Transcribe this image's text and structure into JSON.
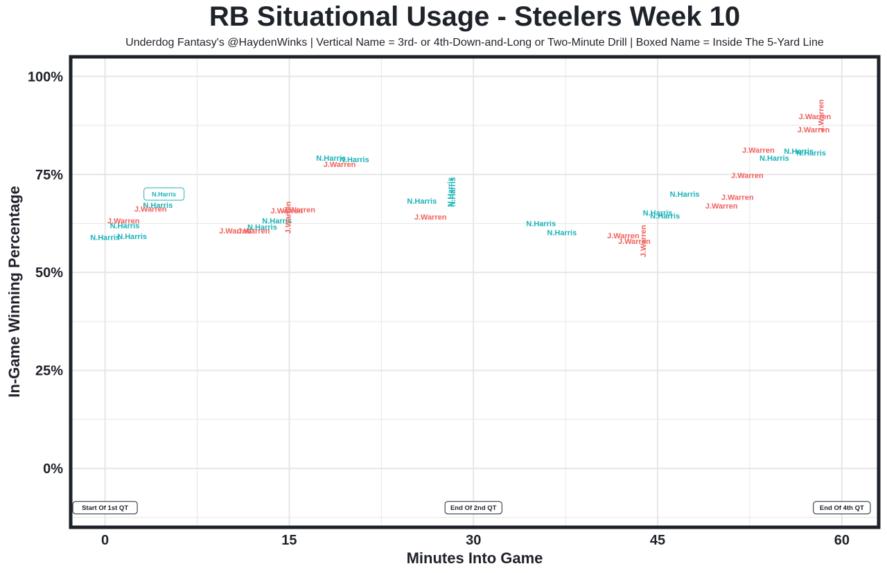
{
  "chart_data": {
    "type": "scatter",
    "title": "RB Situational Usage - Steelers Week 10",
    "subtitle": "Underdog Fantasy's @HaydenWinks | Vertical Name = 3rd- or 4th-Down-and-Long or Two-Minute Drill | Boxed Name = Inside The 5-Yard Line",
    "xlabel": "Minutes Into Game",
    "ylabel": "In-Game Winning Percentage",
    "xlim": [
      -2.8,
      63
    ],
    "ylim": [
      -15,
      105
    ],
    "x_ticks": [
      0,
      15,
      30,
      45,
      60
    ],
    "x_tick_labels": [
      "0",
      "15",
      "30",
      "45",
      "60"
    ],
    "y_ticks": [
      0,
      25,
      50,
      75,
      100
    ],
    "y_tick_labels": [
      "0%",
      "25%",
      "50%",
      "75%",
      "100%"
    ],
    "grid": true,
    "colors": {
      "N.Harris": "#19b3b8",
      "J.Warren": "#f0605d",
      "text": "#1e2229",
      "grid": "#e6e6e6"
    },
    "annotations": [
      {
        "label": "Start Of 1st QT",
        "x": 0,
        "y": -10
      },
      {
        "label": "End Of 2nd QT",
        "x": 30,
        "y": -10
      },
      {
        "label": "End Of 4th QT",
        "x": 60,
        "y": -10
      }
    ],
    "series": [
      {
        "name": "N.Harris",
        "points": [
          {
            "x": 0,
            "y": 59
          },
          {
            "x": 1.6,
            "y": 62
          },
          {
            "x": 2.2,
            "y": 59.2
          },
          {
            "x": 4.3,
            "y": 67.2
          },
          {
            "x": 4.8,
            "y": 70,
            "boxed": true
          },
          {
            "x": 12.8,
            "y": 61.6
          },
          {
            "x": 14,
            "y": 63.2
          },
          {
            "x": 18.4,
            "y": 79.2
          },
          {
            "x": 20.3,
            "y": 78.8
          },
          {
            "x": 25.8,
            "y": 68.2
          },
          {
            "x": 28.1,
            "y": 70.5,
            "vertical": true
          },
          {
            "x": 28.3,
            "y": 70.5,
            "vertical": true
          },
          {
            "x": 35.5,
            "y": 62.5
          },
          {
            "x": 37.2,
            "y": 60.2
          },
          {
            "x": 45,
            "y": 65.2
          },
          {
            "x": 45.6,
            "y": 64.4
          },
          {
            "x": 47.2,
            "y": 70
          },
          {
            "x": 54.5,
            "y": 79.2
          },
          {
            "x": 56.5,
            "y": 81
          },
          {
            "x": 57.5,
            "y": 80.5
          }
        ]
      },
      {
        "name": "J.Warren",
        "points": [
          {
            "x": 1.5,
            "y": 63.2
          },
          {
            "x": 3.7,
            "y": 66.2
          },
          {
            "x": 10.6,
            "y": 60.6
          },
          {
            "x": 12.1,
            "y": 60.6
          },
          {
            "x": 14.8,
            "y": 65.8
          },
          {
            "x": 15.8,
            "y": 66
          },
          {
            "x": 14.9,
            "y": 64,
            "vertical": true
          },
          {
            "x": 19.1,
            "y": 77.6
          },
          {
            "x": 26.5,
            "y": 64.2
          },
          {
            "x": 42.2,
            "y": 59.4
          },
          {
            "x": 43.1,
            "y": 58
          },
          {
            "x": 43.8,
            "y": 58,
            "vertical": true
          },
          {
            "x": 50.2,
            "y": 67
          },
          {
            "x": 51.5,
            "y": 69.2
          },
          {
            "x": 52.3,
            "y": 74.8
          },
          {
            "x": 53.2,
            "y": 81.2
          },
          {
            "x": 57.7,
            "y": 86.4
          },
          {
            "x": 57.8,
            "y": 89.8
          },
          {
            "x": 58.3,
            "y": 90,
            "vertical": true
          }
        ]
      }
    ]
  }
}
